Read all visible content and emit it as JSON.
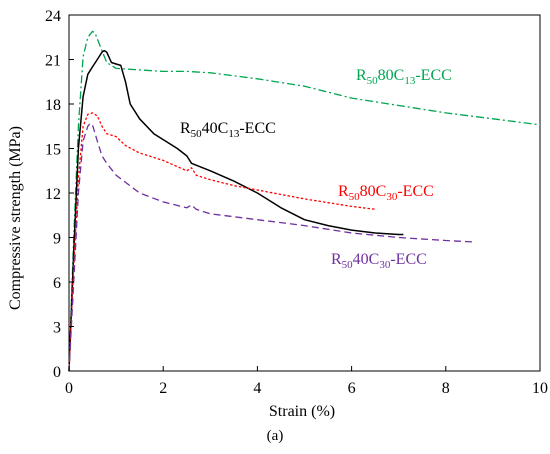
{
  "caption": "(a)",
  "chart_data": {
    "type": "line",
    "xlabel": "Strain (%)",
    "ylabel": "Compressive strength (MPa)",
    "xlim": [
      0,
      10
    ],
    "ylim": [
      0,
      24
    ],
    "xticks": [
      0,
      2,
      4,
      6,
      8,
      10
    ],
    "yticks": [
      0,
      3,
      6,
      9,
      12,
      15,
      18,
      21,
      24
    ],
    "grid": false,
    "series": [
      {
        "name": "R50 80C13-ECC",
        "label": {
          "base": "R",
          "sub1": "50",
          "mid": "80C",
          "sub2": "13",
          "tail": "-ECC"
        },
        "color": "#00a651",
        "style": "dashdot",
        "x": [
          0,
          0.1,
          0.2,
          0.3,
          0.4,
          0.5,
          0.55,
          0.65,
          0.8,
          1.0,
          1.5,
          2.0,
          2.5,
          3.0,
          3.5,
          4.0,
          5.0,
          6.0,
          7.0,
          8.0,
          9.0,
          10.0
        ],
        "y": [
          0,
          9,
          16.5,
          21.2,
          22.5,
          22.9,
          22.8,
          22.0,
          20.8,
          20.4,
          20.3,
          20.2,
          20.2,
          20.1,
          19.9,
          19.7,
          19.2,
          18.4,
          17.9,
          17.4,
          17.0,
          16.6
        ]
      },
      {
        "name": "R50 40C13-ECC",
        "label": {
          "base": "R",
          "sub1": "50",
          "mid": "40C",
          "sub2": "13",
          "tail": "-ECC"
        },
        "color": "#000000",
        "style": "solid",
        "x": [
          0,
          0.1,
          0.2,
          0.3,
          0.4,
          0.5,
          0.6,
          0.7,
          0.75,
          0.8,
          0.9,
          1.0,
          1.1,
          1.2,
          1.3,
          1.5,
          1.8,
          2.0,
          2.3,
          2.5,
          2.6,
          3.0,
          3.5,
          4.0,
          4.5,
          5.0,
          5.5,
          6.0,
          6.5,
          7.0,
          7.1
        ],
        "y": [
          0,
          8,
          15,
          18.5,
          20.0,
          20.5,
          21.0,
          21.5,
          21.6,
          21.5,
          20.8,
          20.7,
          20.6,
          19.5,
          18.0,
          17.0,
          16.0,
          15.6,
          15.0,
          14.5,
          14.0,
          13.5,
          12.8,
          12.0,
          11.0,
          10.2,
          9.8,
          9.5,
          9.3,
          9.2,
          9.2
        ]
      },
      {
        "name": "R50 80C30-ECC",
        "label": {
          "base": "R",
          "sub1": "50",
          "mid": "80C",
          "sub2": "30",
          "tail": "-ECC"
        },
        "color": "#ff0000",
        "style": "dotted",
        "x": [
          0,
          0.1,
          0.2,
          0.3,
          0.4,
          0.5,
          0.6,
          0.7,
          0.8,
          1.0,
          1.2,
          1.5,
          2.0,
          2.5,
          2.6,
          2.7,
          3.0,
          3.5,
          4.0,
          5.0,
          6.0,
          6.5
        ],
        "y": [
          0,
          7,
          13,
          16.5,
          17.3,
          17.4,
          17.2,
          16.5,
          16.0,
          15.8,
          15.2,
          14.7,
          14.2,
          13.5,
          13.7,
          13.2,
          12.9,
          12.5,
          12.2,
          11.6,
          11.1,
          10.9
        ]
      },
      {
        "name": "R50 40C30-ECC",
        "label": {
          "base": "R",
          "sub1": "50",
          "mid": "40C",
          "sub2": "30",
          "tail": "-ECC"
        },
        "color": "#7030a0",
        "style": "dashed",
        "x": [
          0,
          0.1,
          0.2,
          0.3,
          0.4,
          0.45,
          0.5,
          0.6,
          0.7,
          0.8,
          1.0,
          1.5,
          2.0,
          2.5,
          2.6,
          2.7,
          3.0,
          4.0,
          5.0,
          6.0,
          7.0,
          8.0,
          8.6
        ],
        "y": [
          0,
          6,
          12,
          15.5,
          16.5,
          16.7,
          16.6,
          15.5,
          14.5,
          14.0,
          13.2,
          12.0,
          11.4,
          11.0,
          11.2,
          10.9,
          10.6,
          10.2,
          9.8,
          9.3,
          9.0,
          8.8,
          8.7
        ]
      }
    ]
  }
}
